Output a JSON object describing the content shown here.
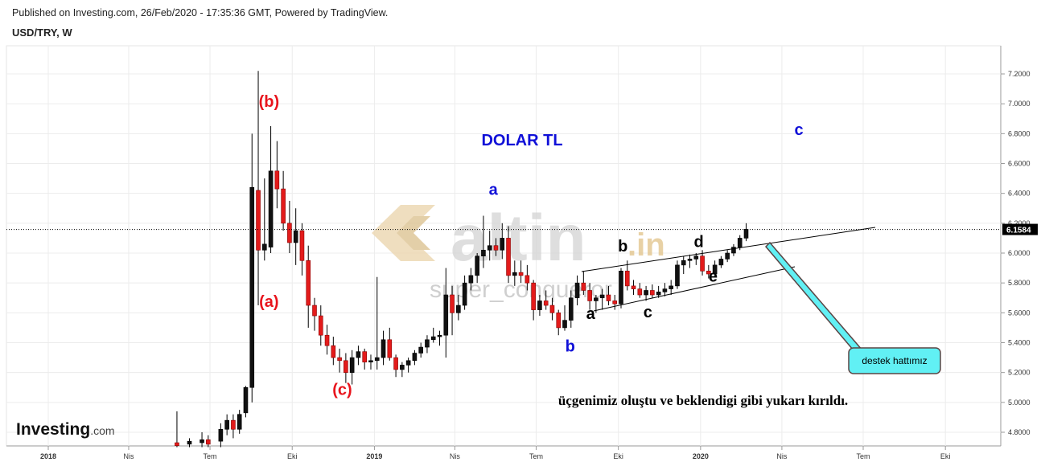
{
  "header": {
    "published": "Published on Investing.com, 26/Feb/2020 - 17:35:36 GMT, Powered by TradingView.",
    "symbol": "USD/TRY, W"
  },
  "logo": {
    "brand": "Investing",
    "suffix": ".com"
  },
  "watermark": {
    "brand": "altin",
    "tld": ".in",
    "user": "super_conqueror"
  },
  "chart_data": {
    "type": "candlestick",
    "title": "DOLAR TL",
    "ylim": [
      4.7,
      7.3
    ],
    "y_ticks": [
      "7.2000",
      "7.0000",
      "6.8000",
      "6.6000",
      "6.4000",
      "6.2000",
      "6.0000",
      "5.8000",
      "5.6000",
      "5.4000",
      "5.2000",
      "5.0000",
      "4.8000"
    ],
    "x_ticks": [
      "2018",
      "Nis",
      "Tem",
      "Eki",
      "2019",
      "Nis",
      "Tem",
      "Eki",
      "2020",
      "Nis",
      "Tem",
      "Eki"
    ],
    "last_price": {
      "value": 6.1584,
      "label": "6.1584"
    },
    "candles": [
      {
        "x": "2018-05-25",
        "o": 4.73,
        "h": 4.94,
        "l": 4.7,
        "c": 4.71
      },
      {
        "x": "2018-06-08",
        "o": 4.72,
        "h": 4.76,
        "l": 4.7,
        "c": 4.74
      },
      {
        "x": "2018-06-22",
        "o": 4.73,
        "h": 4.8,
        "l": 4.7,
        "c": 4.75
      },
      {
        "x": "2018-06-29",
        "o": 4.75,
        "h": 4.78,
        "l": 4.7,
        "c": 4.72
      },
      {
        "x": "2018-07-13",
        "o": 4.74,
        "h": 4.86,
        "l": 4.7,
        "c": 4.82
      },
      {
        "x": "2018-07-20",
        "o": 4.82,
        "h": 4.92,
        "l": 4.78,
        "c": 4.88
      },
      {
        "x": "2018-07-27",
        "o": 4.88,
        "h": 4.92,
        "l": 4.76,
        "c": 4.82
      },
      {
        "x": "2018-08-03",
        "o": 4.82,
        "h": 4.95,
        "l": 4.79,
        "c": 4.92
      },
      {
        "x": "2018-08-10",
        "o": 4.93,
        "h": 5.11,
        "l": 4.9,
        "c": 5.1
      },
      {
        "x": "2018-08-17",
        "o": 5.1,
        "h": 6.8,
        "l": 5.0,
        "c": 6.44
      },
      {
        "x": "2018-08-24",
        "o": 6.42,
        "h": 7.22,
        "l": 5.65,
        "c": 6.02
      },
      {
        "x": "2018-08-31",
        "o": 6.02,
        "h": 6.5,
        "l": 5.95,
        "c": 6.06
      },
      {
        "x": "2018-09-07",
        "o": 6.04,
        "h": 6.85,
        "l": 6.0,
        "c": 6.55
      },
      {
        "x": "2018-09-14",
        "o": 6.55,
        "h": 6.75,
        "l": 6.3,
        "c": 6.43
      },
      {
        "x": "2018-09-21",
        "o": 6.43,
        "h": 6.55,
        "l": 6.15,
        "c": 6.2
      },
      {
        "x": "2018-09-28",
        "o": 6.2,
        "h": 6.35,
        "l": 6.0,
        "c": 6.07
      },
      {
        "x": "2018-10-05",
        "o": 6.07,
        "h": 6.3,
        "l": 5.92,
        "c": 6.15
      },
      {
        "x": "2018-10-12",
        "o": 6.15,
        "h": 6.2,
        "l": 5.85,
        "c": 5.95
      },
      {
        "x": "2018-10-19",
        "o": 5.95,
        "h": 6.05,
        "l": 5.5,
        "c": 5.65
      },
      {
        "x": "2018-10-26",
        "o": 5.65,
        "h": 5.7,
        "l": 5.48,
        "c": 5.58
      },
      {
        "x": "2018-11-02",
        "o": 5.58,
        "h": 5.65,
        "l": 5.38,
        "c": 5.45
      },
      {
        "x": "2018-11-09",
        "o": 5.45,
        "h": 5.52,
        "l": 5.32,
        "c": 5.38
      },
      {
        "x": "2018-11-16",
        "o": 5.38,
        "h": 5.44,
        "l": 5.25,
        "c": 5.3
      },
      {
        "x": "2018-11-23",
        "o": 5.3,
        "h": 5.36,
        "l": 5.2,
        "c": 5.28
      },
      {
        "x": "2018-11-30",
        "o": 5.28,
        "h": 5.33,
        "l": 5.13,
        "c": 5.2
      },
      {
        "x": "2018-12-07",
        "o": 5.2,
        "h": 5.35,
        "l": 5.12,
        "c": 5.3
      },
      {
        "x": "2018-12-14",
        "o": 5.3,
        "h": 5.38,
        "l": 5.25,
        "c": 5.34
      },
      {
        "x": "2018-12-21",
        "o": 5.34,
        "h": 5.36,
        "l": 5.22,
        "c": 5.27
      },
      {
        "x": "2018-12-28",
        "o": 5.27,
        "h": 5.32,
        "l": 5.22,
        "c": 5.28
      },
      {
        "x": "2019-01-04",
        "o": 5.28,
        "h": 5.84,
        "l": 5.22,
        "c": 5.3
      },
      {
        "x": "2019-01-11",
        "o": 5.3,
        "h": 5.48,
        "l": 5.25,
        "c": 5.42
      },
      {
        "x": "2019-01-18",
        "o": 5.42,
        "h": 5.5,
        "l": 5.28,
        "c": 5.3
      },
      {
        "x": "2019-01-25",
        "o": 5.3,
        "h": 5.32,
        "l": 5.17,
        "c": 5.22
      },
      {
        "x": "2019-02-01",
        "o": 5.22,
        "h": 5.27,
        "l": 5.17,
        "c": 5.25
      },
      {
        "x": "2019-02-08",
        "o": 5.25,
        "h": 5.3,
        "l": 5.2,
        "c": 5.28
      },
      {
        "x": "2019-02-15",
        "o": 5.28,
        "h": 5.35,
        "l": 5.25,
        "c": 5.33
      },
      {
        "x": "2019-02-22",
        "o": 5.33,
        "h": 5.4,
        "l": 5.3,
        "c": 5.37
      },
      {
        "x": "2019-03-01",
        "o": 5.37,
        "h": 5.45,
        "l": 5.33,
        "c": 5.42
      },
      {
        "x": "2019-03-08",
        "o": 5.42,
        "h": 5.5,
        "l": 5.4,
        "c": 5.44
      },
      {
        "x": "2019-03-15",
        "o": 5.44,
        "h": 5.48,
        "l": 5.38,
        "c": 5.45
      },
      {
        "x": "2019-03-22",
        "o": 5.45,
        "h": 5.9,
        "l": 5.3,
        "c": 5.72
      },
      {
        "x": "2019-03-29",
        "o": 5.72,
        "h": 5.78,
        "l": 5.45,
        "c": 5.6
      },
      {
        "x": "2019-04-05",
        "o": 5.6,
        "h": 5.72,
        "l": 5.55,
        "c": 5.65
      },
      {
        "x": "2019-04-12",
        "o": 5.65,
        "h": 5.85,
        "l": 5.62,
        "c": 5.8
      },
      {
        "x": "2019-04-19",
        "o": 5.8,
        "h": 5.9,
        "l": 5.75,
        "c": 5.85
      },
      {
        "x": "2019-04-26",
        "o": 5.85,
        "h": 6.0,
        "l": 5.8,
        "c": 5.98
      },
      {
        "x": "2019-05-03",
        "o": 5.98,
        "h": 6.25,
        "l": 5.9,
        "c": 6.02
      },
      {
        "x": "2019-05-10",
        "o": 6.02,
        "h": 6.15,
        "l": 5.95,
        "c": 6.05
      },
      {
        "x": "2019-05-17",
        "o": 6.05,
        "h": 6.1,
        "l": 5.98,
        "c": 6.02
      },
      {
        "x": "2019-05-24",
        "o": 6.02,
        "h": 6.2,
        "l": 5.96,
        "c": 6.1
      },
      {
        "x": "2019-05-31",
        "o": 6.1,
        "h": 6.18,
        "l": 5.8,
        "c": 5.85
      },
      {
        "x": "2019-06-07",
        "o": 5.85,
        "h": 5.95,
        "l": 5.78,
        "c": 5.87
      },
      {
        "x": "2019-06-14",
        "o": 5.87,
        "h": 5.95,
        "l": 5.8,
        "c": 5.85
      },
      {
        "x": "2019-06-21",
        "o": 5.85,
        "h": 5.92,
        "l": 5.75,
        "c": 5.8
      },
      {
        "x": "2019-06-28",
        "o": 5.8,
        "h": 5.82,
        "l": 5.55,
        "c": 5.62
      },
      {
        "x": "2019-07-05",
        "o": 5.62,
        "h": 5.72,
        "l": 5.58,
        "c": 5.68
      },
      {
        "x": "2019-07-12",
        "o": 5.68,
        "h": 5.75,
        "l": 5.62,
        "c": 5.65
      },
      {
        "x": "2019-07-19",
        "o": 5.65,
        "h": 5.7,
        "l": 5.55,
        "c": 5.6
      },
      {
        "x": "2019-07-26",
        "o": 5.6,
        "h": 5.62,
        "l": 5.45,
        "c": 5.5
      },
      {
        "x": "2019-08-02",
        "o": 5.5,
        "h": 5.65,
        "l": 5.48,
        "c": 5.55
      },
      {
        "x": "2019-08-09",
        "o": 5.55,
        "h": 5.75,
        "l": 5.5,
        "c": 5.7
      },
      {
        "x": "2019-08-16",
        "o": 5.7,
        "h": 5.85,
        "l": 5.65,
        "c": 5.8
      },
      {
        "x": "2019-08-23",
        "o": 5.8,
        "h": 5.88,
        "l": 5.72,
        "c": 5.75
      },
      {
        "x": "2019-08-30",
        "o": 5.75,
        "h": 5.8,
        "l": 5.62,
        "c": 5.68
      },
      {
        "x": "2019-09-06",
        "o": 5.68,
        "h": 5.72,
        "l": 5.6,
        "c": 5.7
      },
      {
        "x": "2019-09-13",
        "o": 5.7,
        "h": 5.76,
        "l": 5.62,
        "c": 5.72
      },
      {
        "x": "2019-09-20",
        "o": 5.72,
        "h": 5.78,
        "l": 5.65,
        "c": 5.68
      },
      {
        "x": "2019-09-27",
        "o": 5.68,
        "h": 5.72,
        "l": 5.62,
        "c": 5.66
      },
      {
        "x": "2019-10-04",
        "o": 5.66,
        "h": 5.9,
        "l": 5.63,
        "c": 5.88
      },
      {
        "x": "2019-10-11",
        "o": 5.88,
        "h": 5.95,
        "l": 5.75,
        "c": 5.78
      },
      {
        "x": "2019-10-18",
        "o": 5.78,
        "h": 5.82,
        "l": 5.72,
        "c": 5.76
      },
      {
        "x": "2019-10-25",
        "o": 5.76,
        "h": 5.8,
        "l": 5.7,
        "c": 5.72
      },
      {
        "x": "2019-11-01",
        "o": 5.72,
        "h": 5.78,
        "l": 5.68,
        "c": 5.75
      },
      {
        "x": "2019-11-08",
        "o": 5.75,
        "h": 5.79,
        "l": 5.7,
        "c": 5.72
      },
      {
        "x": "2019-11-15",
        "o": 5.72,
        "h": 5.78,
        "l": 5.7,
        "c": 5.74
      },
      {
        "x": "2019-11-22",
        "o": 5.74,
        "h": 5.8,
        "l": 5.71,
        "c": 5.76
      },
      {
        "x": "2019-11-29",
        "o": 5.76,
        "h": 5.82,
        "l": 5.72,
        "c": 5.78
      },
      {
        "x": "2019-12-06",
        "o": 5.78,
        "h": 5.95,
        "l": 5.76,
        "c": 5.92
      },
      {
        "x": "2019-12-13",
        "o": 5.92,
        "h": 5.98,
        "l": 5.86,
        "c": 5.95
      },
      {
        "x": "2019-12-20",
        "o": 5.95,
        "h": 5.99,
        "l": 5.9,
        "c": 5.96
      },
      {
        "x": "2019-12-27",
        "o": 5.96,
        "h": 6.0,
        "l": 5.92,
        "c": 5.98
      },
      {
        "x": "2020-01-03",
        "o": 5.98,
        "h": 6.02,
        "l": 5.85,
        "c": 5.88
      },
      {
        "x": "2020-01-10",
        "o": 5.88,
        "h": 5.92,
        "l": 5.83,
        "c": 5.86
      },
      {
        "x": "2020-01-17",
        "o": 5.86,
        "h": 5.95,
        "l": 5.84,
        "c": 5.92
      },
      {
        "x": "2020-01-24",
        "o": 5.92,
        "h": 5.98,
        "l": 5.9,
        "c": 5.96
      },
      {
        "x": "2020-01-31",
        "o": 5.96,
        "h": 6.02,
        "l": 5.94,
        "c": 6.0
      },
      {
        "x": "2020-02-07",
        "o": 6.0,
        "h": 6.06,
        "l": 5.98,
        "c": 6.04
      },
      {
        "x": "2020-02-14",
        "o": 6.04,
        "h": 6.12,
        "l": 6.02,
        "c": 6.1
      },
      {
        "x": "2020-02-21",
        "o": 6.1,
        "h": 6.2,
        "l": 6.08,
        "c": 6.16
      }
    ],
    "wave_labels": [
      {
        "text": "(b)",
        "color": "#e8141c",
        "x": "2018-09-05",
        "y": 6.98
      },
      {
        "text": "(a)",
        "color": "#e8141c",
        "x": "2018-09-05",
        "y": 5.64
      },
      {
        "text": "(c)",
        "color": "#e8141c",
        "x": "2018-11-26",
        "y": 5.05
      },
      {
        "text": "a",
        "color": "#1010d8",
        "x": "2019-05-14",
        "y": 6.39
      },
      {
        "text": "b",
        "color": "#1010d8",
        "x": "2019-08-08",
        "y": 5.34
      },
      {
        "text": "c",
        "color": "#1010d8",
        "x": "2020-04-20",
        "y": 6.79
      },
      {
        "text": "a",
        "color": "#000000",
        "x": "2019-08-31",
        "y": 5.56
      },
      {
        "text": "b",
        "color": "#000000",
        "x": "2019-10-06",
        "y": 6.01
      },
      {
        "text": "c",
        "color": "#000000",
        "x": "2019-11-03",
        "y": 5.57
      },
      {
        "text": "d",
        "color": "#000000",
        "x": "2019-12-30",
        "y": 6.04
      },
      {
        "text": "e",
        "color": "#000000",
        "x": "2020-01-15",
        "y": 5.81
      }
    ],
    "annotation": "üçgenimiz oluştu ve beklendigi gibi yukarı kırıldı.",
    "callout": "destek hattımız"
  }
}
